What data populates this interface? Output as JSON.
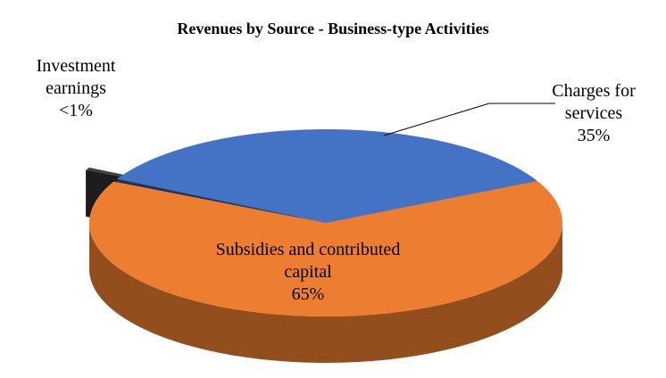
{
  "chart_data": {
    "type": "pie",
    "title": "Revenues by Source - Business-type Activities",
    "categories": [
      "Charges for services",
      "Subsidies and contributed capital",
      "Investment earnings"
    ],
    "values": [
      35,
      65,
      0.5
    ],
    "value_labels": [
      "35%",
      "65%",
      "<1%"
    ],
    "colors": [
      "#4472c4",
      "#ed7d31",
      "#404040"
    ]
  }
}
